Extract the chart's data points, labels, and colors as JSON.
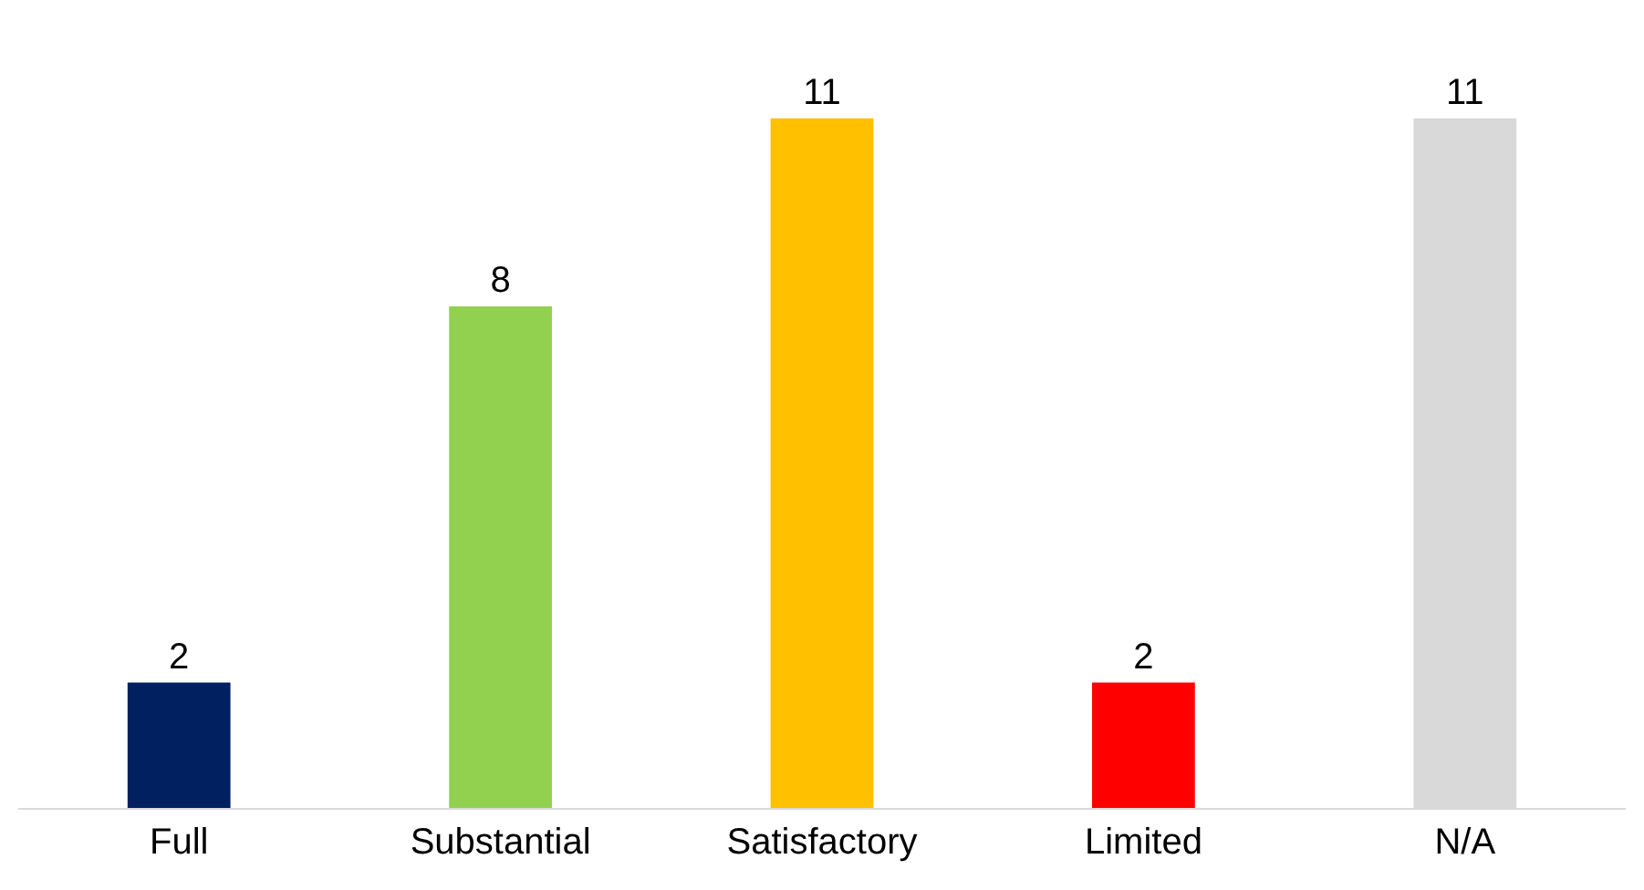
{
  "chart_data": {
    "type": "bar",
    "categories": [
      "Full",
      "Substantial",
      "Satisfactory",
      "Limited",
      "N/A"
    ],
    "values": [
      2,
      8,
      11,
      2,
      11
    ],
    "colors": [
      "#002060",
      "#92d050",
      "#ffc000",
      "#ff0000",
      "#d9d9d9"
    ],
    "data_labels": true
  }
}
